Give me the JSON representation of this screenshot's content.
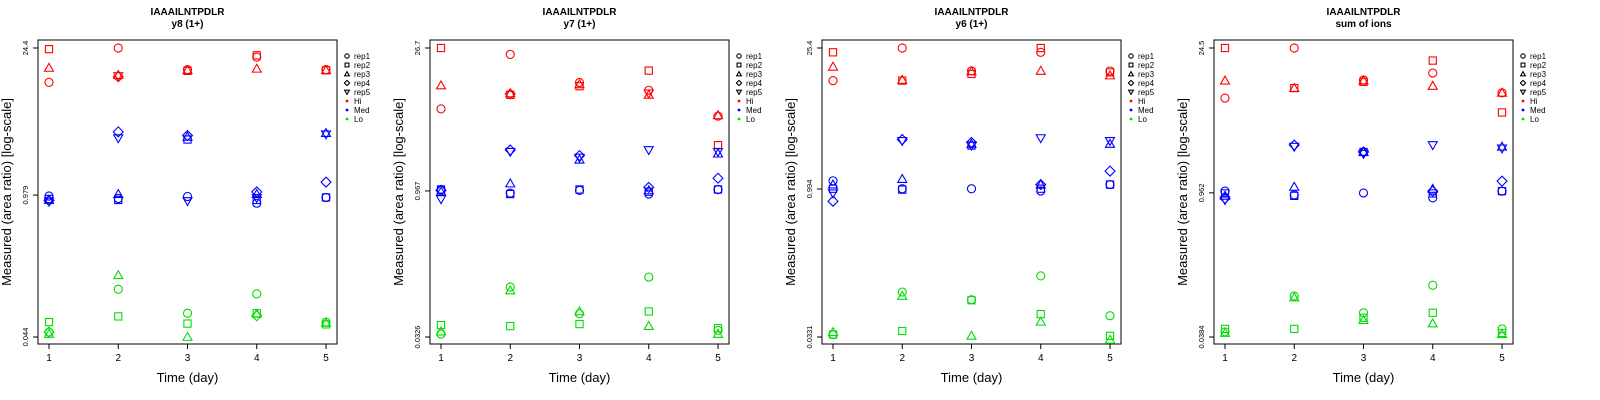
{
  "figure": {
    "x_label": "Time (day)",
    "y_label": "Measured (area ratio) [log-scale]",
    "legend": {
      "replicates": [
        {
          "label": "rep1",
          "marker": "circle"
        },
        {
          "label": "rep2",
          "marker": "square"
        },
        {
          "label": "rep3",
          "marker": "triangle"
        },
        {
          "label": "rep4",
          "marker": "diamond"
        },
        {
          "label": "rep5",
          "marker": "triangle-down"
        }
      ],
      "levels": [
        {
          "label": "Hi",
          "color": "#ff0000"
        },
        {
          "label": "Med",
          "color": "#0000ff"
        },
        {
          "label": "Lo",
          "color": "#00dd00"
        }
      ]
    }
  },
  "chart_data": [
    {
      "type": "scatter",
      "title": "IAAAILNTPDLR",
      "subtitle": "y8 (1+)",
      "xlabel": "Time (day)",
      "ylabel": "Measured (area ratio) [log-scale]",
      "scale": "log",
      "x": [
        1,
        2,
        3,
        4,
        5
      ],
      "y_ticks": [
        0.044,
        0.979,
        24.4
      ],
      "y_tick_labels": [
        "0.044",
        "0.979",
        "24.4"
      ],
      "ylim": [
        0.044,
        24.4
      ],
      "series": [
        {
          "level": "Hi",
          "rep": "rep1",
          "values": [
            11.5,
            24.4,
            15.2,
            20.0,
            15.2
          ]
        },
        {
          "level": "Hi",
          "rep": "rep2",
          "values": [
            23.8,
            null,
            14.8,
            20.8,
            15.0
          ]
        },
        {
          "level": "Hi",
          "rep": "rep3",
          "values": [
            15.8,
            13.5,
            15.0,
            15.5,
            15.0
          ]
        },
        {
          "level": "Hi",
          "rep": "rep4",
          "values": [
            null,
            13.0,
            null,
            null,
            null
          ]
        },
        {
          "level": "Hi",
          "rep": "rep5",
          "values": [
            null,
            13.2,
            null,
            null,
            null
          ]
        },
        {
          "level": "Med",
          "rep": "rep1",
          "values": [
            0.96,
            0.91,
            0.95,
            0.82,
            0.93
          ]
        },
        {
          "level": "Med",
          "rep": "rep2",
          "values": [
            0.9,
            0.88,
            3.3,
            0.88,
            0.93
          ]
        },
        {
          "level": "Med",
          "rep": "rep3",
          "values": [
            0.88,
            1.0,
            3.5,
            1.0,
            3.8
          ]
        },
        {
          "level": "Med",
          "rep": "rep4",
          "values": [
            0.87,
            3.9,
            3.6,
            1.05,
            1.3
          ]
        },
        {
          "level": "Med",
          "rep": "rep5",
          "values": [
            0.85,
            3.4,
            0.86,
            0.92,
            3.7
          ]
        },
        {
          "level": "Lo",
          "rep": "rep1",
          "values": [
            0.049,
            0.125,
            0.074,
            0.113,
            0.061
          ]
        },
        {
          "level": "Lo",
          "rep": "rep2",
          "values": [
            0.061,
            0.069,
            0.059,
            0.074,
            0.058
          ]
        },
        {
          "level": "Lo",
          "rep": "rep3",
          "values": [
            0.047,
            0.17,
            0.044,
            0.073,
            0.06
          ]
        },
        {
          "level": "Lo",
          "rep": "rep4",
          "values": [
            0.049,
            null,
            null,
            0.07,
            null
          ]
        },
        {
          "level": "Lo",
          "rep": "rep5",
          "values": [
            null,
            null,
            null,
            null,
            null
          ]
        }
      ]
    },
    {
      "type": "scatter",
      "title": "IAAAILNTPDLR",
      "subtitle": "y7 (1+)",
      "xlabel": "Time (day)",
      "ylabel": "Measured (area ratio) [log-scale]",
      "scale": "log",
      "x": [
        1,
        2,
        3,
        4,
        5
      ],
      "y_ticks": [
        0.0326,
        0.967,
        26.7
      ],
      "y_tick_labels": [
        "0.0326",
        "0.967",
        "26.7"
      ],
      "ylim": [
        0.0326,
        26.7
      ],
      "series": [
        {
          "level": "Hi",
          "rep": "rep1",
          "values": [
            6.5,
            23.0,
            12.0,
            10.0,
            5.5
          ]
        },
        {
          "level": "Hi",
          "rep": "rep2",
          "values": [
            26.7,
            9.0,
            11.0,
            15.8,
            2.8
          ]
        },
        {
          "level": "Hi",
          "rep": "rep3",
          "values": [
            11.2,
            9.3,
            11.5,
            9.0,
            5.6
          ]
        },
        {
          "level": "Hi",
          "rep": "rep4",
          "values": [
            null,
            9.2,
            null,
            null,
            null
          ]
        },
        {
          "level": "Hi",
          "rep": "rep5",
          "values": [
            null,
            null,
            null,
            9.3,
            null
          ]
        },
        {
          "level": "Med",
          "rep": "rep1",
          "values": [
            1.0,
            0.92,
            0.98,
            0.9,
            1.0
          ]
        },
        {
          "level": "Med",
          "rep": "rep2",
          "values": [
            1.0,
            0.9,
            1.0,
            0.95,
            1.0
          ]
        },
        {
          "level": "Med",
          "rep": "rep3",
          "values": [
            0.95,
            1.15,
            2.0,
            0.98,
            2.3
          ]
        },
        {
          "level": "Med",
          "rep": "rep4",
          "values": [
            0.98,
            2.5,
            2.2,
            1.05,
            1.3
          ]
        },
        {
          "level": "Med",
          "rep": "rep5",
          "values": [
            0.8,
            2.4,
            2.1,
            2.5,
            2.4
          ]
        },
        {
          "level": "Lo",
          "rep": "rep1",
          "values": [
            0.035,
            0.104,
            0.056,
            0.131,
            0.038
          ]
        },
        {
          "level": "Lo",
          "rep": "rep2",
          "values": [
            0.043,
            0.042,
            0.044,
            0.059,
            0.04
          ]
        },
        {
          "level": "Lo",
          "rep": "rep3",
          "values": [
            0.037,
            0.096,
            0.059,
            0.042,
            0.035
          ]
        },
        {
          "level": "Lo",
          "rep": "rep4",
          "values": [
            null,
            null,
            null,
            null,
            null
          ]
        },
        {
          "level": "Lo",
          "rep": "rep5",
          "values": [
            null,
            null,
            null,
            null,
            null
          ]
        }
      ]
    },
    {
      "type": "scatter",
      "title": "IAAAILNTPDLR",
      "subtitle": "y6 (1+)",
      "xlabel": "Time (day)",
      "ylabel": "Measured (area ratio) [log-scale]",
      "scale": "log",
      "x": [
        1,
        2,
        3,
        4,
        5
      ],
      "y_ticks": [
        0.0331,
        0.994,
        25.4
      ],
      "y_tick_labels": [
        "0.0331",
        "0.994",
        "25.4"
      ],
      "ylim": [
        0.0331,
        25.4
      ],
      "series": [
        {
          "level": "Hi",
          "rep": "rep1",
          "values": [
            12.0,
            25.4,
            15.0,
            23.0,
            15.0
          ]
        },
        {
          "level": "Hi",
          "rep": "rep2",
          "values": [
            23.0,
            12.0,
            14.0,
            25.4,
            14.5
          ]
        },
        {
          "level": "Hi",
          "rep": "rep3",
          "values": [
            16.5,
            12.2,
            14.8,
            15.0,
            13.5
          ]
        },
        {
          "level": "Hi",
          "rep": "rep4",
          "values": [
            null,
            null,
            null,
            null,
            null
          ]
        },
        {
          "level": "Hi",
          "rep": "rep5",
          "values": [
            null,
            null,
            null,
            null,
            null
          ]
        },
        {
          "level": "Med",
          "rep": "rep1",
          "values": [
            1.2,
            1.0,
            1.0,
            0.95,
            1.1
          ]
        },
        {
          "level": "Med",
          "rep": "rep2",
          "values": [
            1.0,
            0.98,
            2.7,
            1.0,
            1.1
          ]
        },
        {
          "level": "Med",
          "rep": "rep3",
          "values": [
            1.1,
            1.25,
            2.8,
            1.1,
            2.8
          ]
        },
        {
          "level": "Med",
          "rep": "rep4",
          "values": [
            0.75,
            3.1,
            2.9,
            1.1,
            1.5
          ]
        },
        {
          "level": "Med",
          "rep": "rep5",
          "values": [
            0.9,
            3.0,
            2.7,
            3.2,
            3.0
          ]
        },
        {
          "level": "Lo",
          "rep": "rep1",
          "values": [
            0.035,
            0.093,
            0.078,
            0.135,
            0.054
          ]
        },
        {
          "level": "Lo",
          "rep": "rep2",
          "values": [
            0.035,
            0.038,
            0.077,
            0.056,
            0.034
          ]
        },
        {
          "level": "Lo",
          "rep": "rep3",
          "values": [
            0.037,
            0.085,
            0.034,
            0.047,
            0.031
          ]
        },
        {
          "level": "Lo",
          "rep": "rep4",
          "values": [
            null,
            null,
            null,
            null,
            null
          ]
        },
        {
          "level": "Lo",
          "rep": "rep5",
          "values": [
            null,
            null,
            null,
            null,
            null
          ]
        }
      ]
    },
    {
      "type": "scatter",
      "title": "IAAAILNTPDLR",
      "subtitle": "sum of ions",
      "xlabel": "Time (day)",
      "ylabel": "Measured (area ratio) [log-scale]",
      "scale": "log",
      "x": [
        1,
        2,
        3,
        4,
        5
      ],
      "y_ticks": [
        0.0384,
        0.962,
        24.5
      ],
      "y_tick_labels": [
        "0.0384",
        "0.962",
        "24.5"
      ],
      "ylim": [
        0.0384,
        24.5
      ],
      "series": [
        {
          "level": "Hi",
          "rep": "rep1",
          "values": [
            8.0,
            24.5,
            12.0,
            14.0,
            9.0
          ]
        },
        {
          "level": "Hi",
          "rep": "rep2",
          "values": [
            24.5,
            10.0,
            11.5,
            18.5,
            5.8
          ]
        },
        {
          "level": "Hi",
          "rep": "rep3",
          "values": [
            11.8,
            10.0,
            11.8,
            10.5,
            9.0
          ]
        },
        {
          "level": "Hi",
          "rep": "rep4",
          "values": [
            null,
            null,
            null,
            null,
            null
          ]
        },
        {
          "level": "Hi",
          "rep": "rep5",
          "values": [
            null,
            null,
            null,
            null,
            null
          ]
        },
        {
          "level": "Med",
          "rep": "rep1",
          "values": [
            1.0,
            0.92,
            0.96,
            0.86,
            1.0
          ]
        },
        {
          "level": "Med",
          "rep": "rep2",
          "values": [
            0.95,
            0.9,
            2.4,
            0.95,
            1.0
          ]
        },
        {
          "level": "Med",
          "rep": "rep3",
          "values": [
            0.9,
            1.1,
            2.4,
            1.05,
            2.7
          ]
        },
        {
          "level": "Med",
          "rep": "rep4",
          "values": [
            0.85,
            2.8,
            2.4,
            1.0,
            1.25
          ]
        },
        {
          "level": "Med",
          "rep": "rep5",
          "values": [
            0.82,
            2.7,
            2.3,
            2.8,
            2.6
          ]
        },
        {
          "level": "Lo",
          "rep": "rep1",
          "values": [
            0.043,
            0.096,
            0.066,
            0.122,
            0.046
          ]
        },
        {
          "level": "Lo",
          "rep": "rep2",
          "values": [
            0.046,
            0.046,
            0.059,
            0.066,
            0.042
          ]
        },
        {
          "level": "Lo",
          "rep": "rep3",
          "values": [
            0.042,
            0.093,
            0.056,
            0.052,
            0.041
          ]
        },
        {
          "level": "Lo",
          "rep": "rep4",
          "values": [
            null,
            null,
            null,
            null,
            null
          ]
        },
        {
          "level": "Lo",
          "rep": "rep5",
          "values": [
            null,
            null,
            null,
            null,
            null
          ]
        }
      ]
    }
  ]
}
